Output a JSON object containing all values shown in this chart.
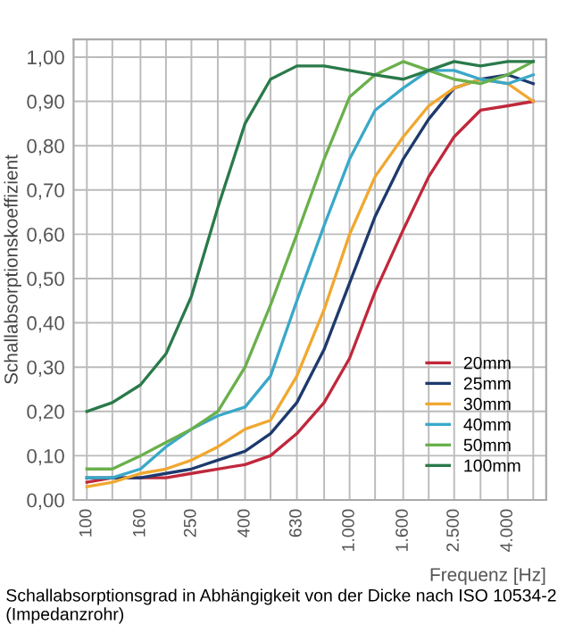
{
  "chart_data": {
    "type": "line",
    "ylabel": "Schallabsorptionskoeffizient",
    "xlabel": "Frequenz [Hz]",
    "log": "x",
    "x": [
      100,
      125,
      160,
      200,
      250,
      315,
      400,
      500,
      630,
      800,
      1000,
      1250,
      1600,
      2000,
      2500,
      3150,
      4000,
      5000
    ],
    "series": [
      {
        "name": "20mm",
        "color": "#c0283c",
        "values": [
          0.04,
          0.05,
          0.05,
          0.05,
          0.06,
          0.07,
          0.08,
          0.1,
          0.15,
          0.22,
          0.32,
          0.47,
          0.61,
          0.73,
          0.82,
          0.88,
          0.89,
          0.9
        ]
      },
      {
        "name": "25mm",
        "color": "#1d3a6e",
        "values": [
          0.05,
          0.05,
          0.05,
          0.06,
          0.07,
          0.09,
          0.11,
          0.15,
          0.22,
          0.34,
          0.49,
          0.64,
          0.77,
          0.86,
          0.93,
          0.95,
          0.96,
          0.94
        ]
      },
      {
        "name": "30mm",
        "color": "#f0a830",
        "values": [
          0.03,
          0.04,
          0.06,
          0.07,
          0.09,
          0.12,
          0.16,
          0.18,
          0.28,
          0.43,
          0.6,
          0.73,
          0.82,
          0.89,
          0.93,
          0.95,
          0.94,
          0.9
        ]
      },
      {
        "name": "40mm",
        "color": "#3aa8c8",
        "values": [
          0.05,
          0.05,
          0.07,
          0.12,
          0.16,
          0.19,
          0.21,
          0.28,
          0.45,
          0.62,
          0.77,
          0.88,
          0.93,
          0.97,
          0.97,
          0.95,
          0.94,
          0.96
        ]
      },
      {
        "name": "50mm",
        "color": "#6ab04c",
        "values": [
          0.07,
          0.07,
          0.1,
          0.13,
          0.16,
          0.2,
          0.3,
          0.44,
          0.6,
          0.77,
          0.91,
          0.96,
          0.99,
          0.97,
          0.95,
          0.94,
          0.96,
          0.99
        ]
      },
      {
        "name": "100mm",
        "color": "#2a7a4a",
        "values": [
          0.2,
          0.22,
          0.26,
          0.33,
          0.46,
          0.66,
          0.85,
          0.95,
          0.98,
          0.98,
          0.97,
          0.96,
          0.95,
          0.97,
          0.99,
          0.98,
          0.99,
          0.99
        ]
      }
    ],
    "xlim": [
      89,
      5600
    ],
    "xticks": [
      {
        "value": 100,
        "label": "100"
      },
      {
        "value": 125,
        "label": null
      },
      {
        "value": 160,
        "label": "160"
      },
      {
        "value": 200,
        "label": null
      },
      {
        "value": 250,
        "label": "250"
      },
      {
        "value": 315,
        "label": null
      },
      {
        "value": 400,
        "label": "400"
      },
      {
        "value": 500,
        "label": null
      },
      {
        "value": 630,
        "label": "630"
      },
      {
        "value": 800,
        "label": null
      },
      {
        "value": 1000,
        "label": "1.000"
      },
      {
        "value": 1250,
        "label": null
      },
      {
        "value": 1600,
        "label": "1.600"
      },
      {
        "value": 2000,
        "label": null
      },
      {
        "value": 2500,
        "label": "2.500"
      },
      {
        "value": 3150,
        "label": null
      },
      {
        "value": 4000,
        "label": "4.000"
      },
      {
        "value": 5000,
        "label": null
      }
    ],
    "ylim": [
      0,
      1.04
    ],
    "yticks": [
      {
        "value": 0,
        "label": "0,00"
      },
      {
        "value": 0.1,
        "label": "0,10"
      },
      {
        "value": 0.2,
        "label": "0,20"
      },
      {
        "value": 0.3,
        "label": "0,30"
      },
      {
        "value": 0.4,
        "label": "0,40"
      },
      {
        "value": 0.5,
        "label": "0,50"
      },
      {
        "value": 0.6,
        "label": "0,60"
      },
      {
        "value": 0.7,
        "label": "0,70"
      },
      {
        "value": 0.8,
        "label": "0,80"
      },
      {
        "value": 0.9,
        "label": "0,90"
      },
      {
        "value": 1.0,
        "label": "1,00"
      }
    ],
    "grid": true,
    "legend": "bottom right",
    "line_style": "solid",
    "annotations": [
      "Schallabsorptionsgrad in Abhängigkeit von der Dicke nach ISO 10534-2 (Impedanzrohr)"
    ]
  }
}
